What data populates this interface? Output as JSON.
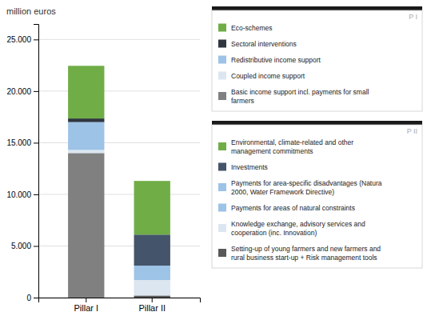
{
  "chart_data": {
    "type": "bar",
    "stacked": true,
    "grid": true,
    "ylabel": "million euros",
    "categories": [
      "Pillar I",
      "Pillar II"
    ],
    "ylim": [
      0,
      26500
    ],
    "yticks": [
      0,
      {
        "value": 5000,
        "label": "5.000"
      },
      {
        "value": 10000,
        "label": "10.000"
      },
      {
        "value": 15000,
        "label": "15.000"
      },
      {
        "value": 20000,
        "label": "20.000"
      },
      {
        "value": 25000,
        "label": "25.000"
      }
    ],
    "annotations": [
      "P I",
      "P II"
    ],
    "series": [
      {
        "name": "Basic income support incl. payments for small\nfarmers",
        "color": "#808080",
        "values": [
          14000,
          null
        ]
      },
      {
        "name": "Coupled income support",
        "color": "#dce6f1",
        "values": [
          300,
          null
        ]
      },
      {
        "name": "Redistributive income support",
        "color": "#9dc3e6",
        "values": [
          2700,
          null
        ]
      },
      {
        "name": "Sectoral interventions",
        "color": "#2f3640",
        "values": [
          350,
          null
        ]
      },
      {
        "name": "Eco-schemes",
        "color": "#70ad47",
        "values": [
          5100,
          null
        ]
      },
      {
        "name": "Setting-up of young farmers and new farmers and\nrural business start-up + Risk management tools",
        "color": "#595959",
        "values": [
          null,
          200
        ]
      },
      {
        "name": "Knowledge exchange, advisory services and\ncooperation (inc. Innovation)",
        "color": "#dce6f1",
        "values": [
          null,
          1500
        ]
      },
      {
        "name": "Payments for areas of natural constraints",
        "color": "#9dc3e6",
        "values": [
          null,
          700
        ]
      },
      {
        "name": "Payments for area-specific disadvantages (Natura\n2000, Water Framework Directive)",
        "color": "#9dc3e6",
        "values": [
          null,
          700
        ]
      },
      {
        "name": "Investments",
        "color": "#44546a",
        "values": [
          null,
          3000
        ]
      },
      {
        "name": "Environmental, climate-related and other\nmanagement commitments",
        "color": "#70ad47",
        "values": [
          null,
          5200
        ]
      }
    ]
  }
}
